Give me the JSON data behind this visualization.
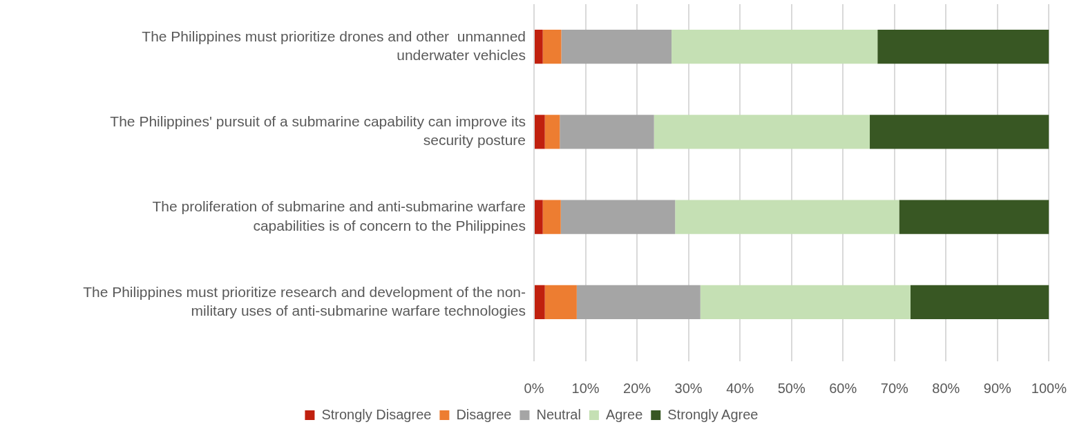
{
  "chart_data": {
    "type": "bar",
    "orientation": "horizontal",
    "stacked": true,
    "categories": [
      "The Philippines must prioritize drones and other  unmanned underwater vehicles",
      "The Philippines' pursuit of a submarine capability can improve its security posture",
      "The proliferation of submarine and anti-submarine warfare capabilities is of concern to the Philippines",
      "The Philippines must prioritize research and development of the non-military uses of anti-submarine warfare technologies"
    ],
    "series": [
      {
        "name": "Strongly Disagree",
        "color": "#c0200e",
        "values": [
          1.7,
          2.1,
          1.7,
          2.1
        ]
      },
      {
        "name": "Disagree",
        "color": "#ed7d31",
        "values": [
          3.6,
          2.9,
          3.5,
          6.2
        ]
      },
      {
        "name": "Neutral",
        "color": "#a5a5a5",
        "values": [
          21.4,
          18.3,
          22.2,
          24.0
        ]
      },
      {
        "name": "Agree",
        "color": "#c5e0b4",
        "values": [
          40.0,
          41.9,
          43.5,
          40.8
        ]
      },
      {
        "name": "Strongly Agree",
        "color": "#385723",
        "values": [
          33.3,
          34.8,
          29.1,
          26.9
        ]
      }
    ],
    "xlim": [
      0,
      100
    ],
    "xticks": [
      {
        "value": 0,
        "label": "0%"
      },
      {
        "value": 10,
        "label": "10%"
      },
      {
        "value": 20,
        "label": "20%"
      },
      {
        "value": 30,
        "label": "30%"
      },
      {
        "value": 40,
        "label": "40%"
      },
      {
        "value": 50,
        "label": "50%"
      },
      {
        "value": 60,
        "label": "60%"
      },
      {
        "value": 70,
        "label": "70%"
      },
      {
        "value": 80,
        "label": "80%"
      },
      {
        "value": 90,
        "label": "90%"
      },
      {
        "value": 100,
        "label": "100%"
      }
    ],
    "grid": "x",
    "legend": "bottom"
  }
}
